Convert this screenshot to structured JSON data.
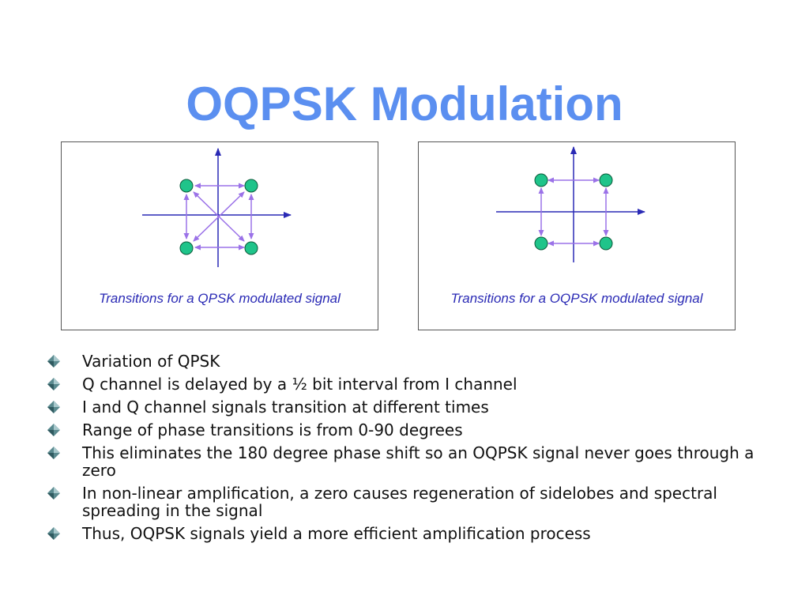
{
  "slide": {
    "title": "OQPSK Modulation",
    "diagrams": [
      {
        "caption": "Transitions for a QPSK modulated signal"
      },
      {
        "caption": "Transitions for a OQPSK modulated signal"
      }
    ],
    "bullets": [
      "Variation of QPSK",
      "Q channel is delayed by a ½ bit interval from I channel",
      "I and Q channel signals transition at different times",
      "Range of phase transitions is from 0-90 degrees",
      "This eliminates the 180 degree phase shift so an OQPSK signal never goes through a zero",
      "In non-linear amplification, a zero causes regeneration of sidelobes and spectral spreading in the signal",
      "Thus, OQPSK signals yield a more efficient amplification process"
    ]
  },
  "colors": {
    "title": "#5b8ff0",
    "caption": "#2a2ab5",
    "axis": "#2a2ab5",
    "transition_arrow": "#9b72e8",
    "constellation_point": "#1fc48a",
    "bullet_diamond": "#5a8a8f"
  },
  "icons": {
    "bullet": "diamond-bullet-icon"
  }
}
